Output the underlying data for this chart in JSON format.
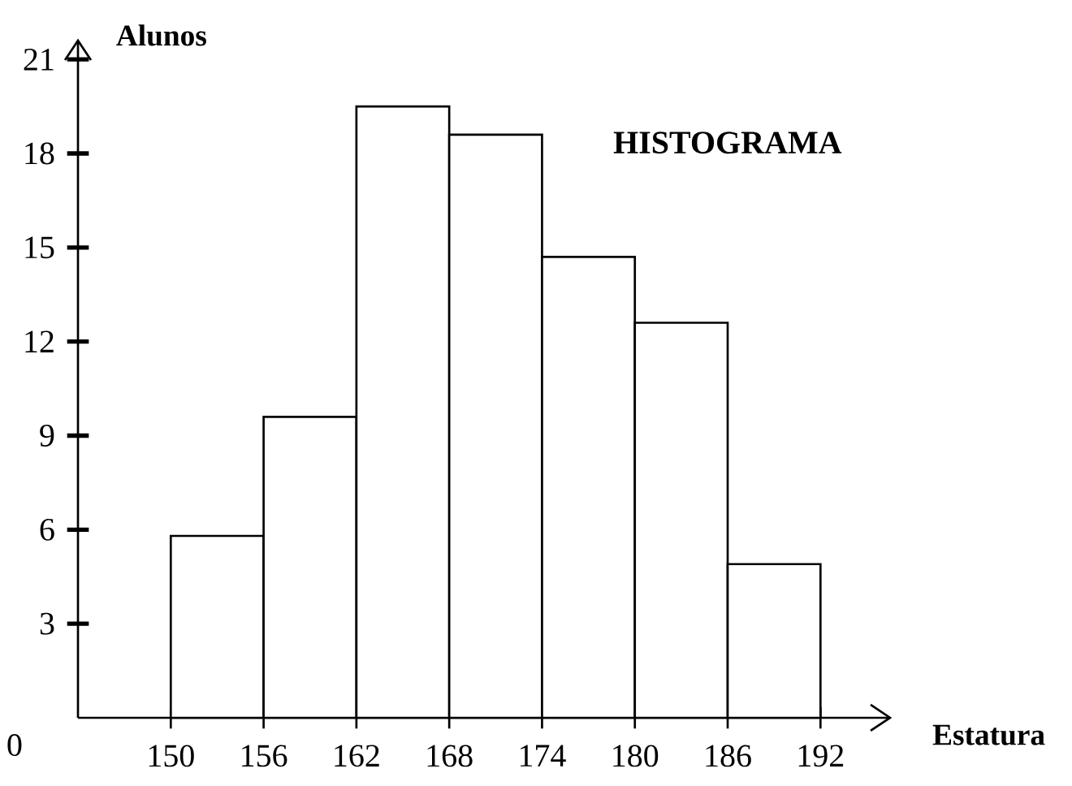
{
  "chart_data": {
    "type": "histogram",
    "title": "HISTOGRAMA",
    "xlabel": "Estatura",
    "ylabel": "Alunos",
    "bins": [
      150,
      156,
      162,
      168,
      174,
      180,
      186,
      192
    ],
    "values": [
      5.8,
      9.6,
      19.5,
      18.6,
      14.7,
      12.6,
      4.9
    ],
    "color": "#ffffff",
    "xlim": [
      144,
      196.5
    ],
    "ylim": [
      0,
      21.6
    ],
    "xticks": [
      150,
      156,
      162,
      168,
      174,
      180,
      186,
      192
    ],
    "yticks": [
      3,
      6,
      9,
      12,
      15,
      18,
      21
    ],
    "annotations": [
      "0"
    ],
    "grid": false
  }
}
